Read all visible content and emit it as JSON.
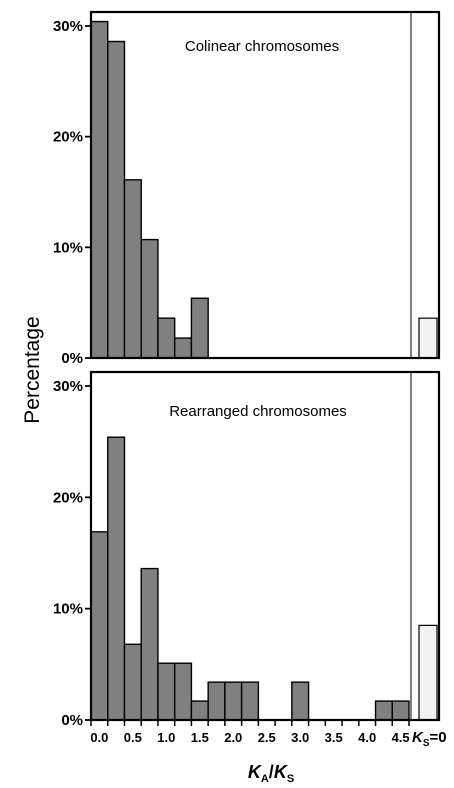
{
  "chart_data": {
    "type": "bar",
    "ylabel": "Percentage",
    "xlabel": {
      "main": "K",
      "main_sub": "A",
      "sep": "/",
      "den": "K",
      "den_sub": "S"
    },
    "x_tick_labels": [
      "0.0",
      "0.5",
      "1.0",
      "1.5",
      "2.0",
      "2.5",
      "3.0",
      "3.5",
      "4.0",
      "4.5"
    ],
    "ks_zero_label": {
      "k": "K",
      "sub": "S",
      "suffix": "=0"
    },
    "y_tick_labels": [
      "0%",
      "10%",
      "20%",
      "30%"
    ],
    "ylim": [
      0,
      31.5
    ],
    "bin_width": 0.25,
    "xlim": [
      0,
      4.75
    ],
    "colors": {
      "bar": "#808080",
      "ks_bar": "#f2f2f2",
      "stroke": "#000000"
    },
    "panels": [
      {
        "title": "Colinear chromosomes",
        "bins": [
          0.0,
          0.25,
          0.5,
          0.75,
          1.0,
          1.25,
          1.5
        ],
        "values": [
          30.4,
          28.6,
          16.1,
          10.7,
          3.6,
          1.8,
          5.4
        ],
        "ks_zero": 3.6
      },
      {
        "title": "Rearranged chromosomes",
        "bins": [
          0.0,
          0.25,
          0.5,
          0.75,
          1.0,
          1.25,
          1.5,
          1.75,
          2.0,
          2.25,
          2.5,
          2.75,
          3.0,
          3.25,
          3.5,
          3.75,
          4.0,
          4.25,
          4.5
        ],
        "values": [
          16.9,
          25.4,
          6.8,
          13.6,
          5.1,
          5.1,
          1.7,
          3.4,
          3.4,
          3.4,
          0,
          0,
          3.4,
          0,
          0,
          0,
          0,
          1.7,
          1.7
        ],
        "ks_zero": 8.5
      }
    ]
  }
}
